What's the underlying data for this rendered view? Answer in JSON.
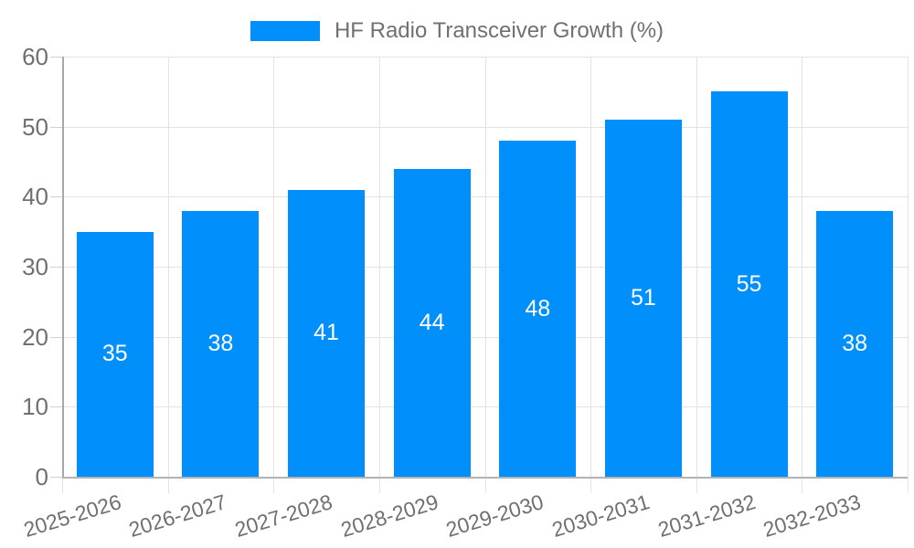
{
  "window": {
    "background": "#ffffff"
  },
  "chart": {
    "colors": {
      "bar": "#008FFB",
      "grid": "#e3e3e3",
      "axis": "#aeaeae",
      "text": "#707070",
      "bar_label": "#ffffff"
    }
  },
  "chart_data": {
    "type": "bar",
    "title": "HF Radio Transceiver Growth (%)",
    "legend": [
      "HF Radio Transceiver Growth (%)"
    ],
    "legend_position": "top-center",
    "categories": [
      "2025-2026",
      "2026-2027",
      "2027-2028",
      "2028-2029",
      "2029-2030",
      "2030-2031",
      "2031-2032",
      "2032-2033"
    ],
    "values": [
      35,
      38,
      41,
      44,
      48,
      51,
      55,
      38
    ],
    "xlabel": "",
    "ylabel": "",
    "ylim": [
      0,
      60
    ],
    "yticks": [
      0,
      10,
      20,
      30,
      40,
      50,
      60
    ],
    "grid": true,
    "value_labels_position": "inside-center",
    "x_label_rotation_deg": -17
  }
}
